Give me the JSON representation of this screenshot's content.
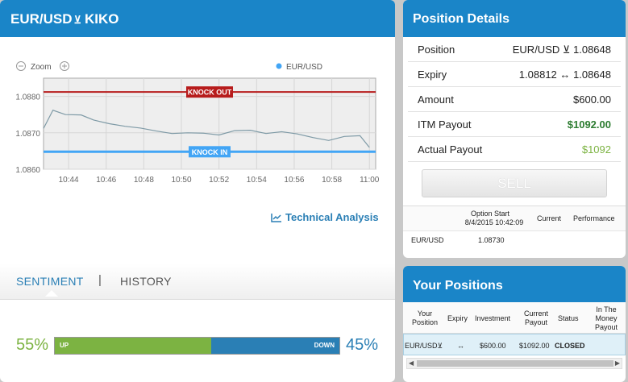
{
  "left": {
    "title": "EUR/USD",
    "title_arrow": "⊻",
    "title_suffix": "KIKO",
    "zoom_label": "Zoom",
    "legend": "EUR/USD",
    "technical_analysis": "Technical Analysis",
    "tabs": [
      "SENTIMENT",
      "|",
      "HISTORY"
    ],
    "sentiment": {
      "up_pct": "55%",
      "down_pct": "45%",
      "up_label": "UP",
      "down_label": "DOWN",
      "up_fraction": 0.55
    }
  },
  "chart_data": {
    "type": "line",
    "series": [
      {
        "name": "EUR/USD",
        "x": [
          "10:42:40",
          "10:43:10",
          "10:43:50",
          "10:44:40",
          "10:45:20",
          "10:46:10",
          "10:47:00",
          "10:47:50",
          "10:48:40",
          "10:49:30",
          "10:50:20",
          "10:51:10",
          "10:52:00",
          "10:52:50",
          "10:53:40",
          "10:54:30",
          "10:55:20",
          "10:56:10",
          "10:57:00",
          "10:57:50",
          "10:58:40",
          "10:59:30",
          "11:00:00"
        ],
        "y": [
          1.08712,
          1.08762,
          1.0875,
          1.08749,
          1.08735,
          1.08725,
          1.08718,
          1.08713,
          1.08705,
          1.08698,
          1.087,
          1.08699,
          1.08694,
          1.08706,
          1.08707,
          1.08698,
          1.08703,
          1.08697,
          1.08687,
          1.08679,
          1.0869,
          1.08692,
          1.0866
        ]
      }
    ],
    "y_ticks": [
      "1.0880",
      "1.0870",
      "1.0860"
    ],
    "x_ticks": [
      "10:44",
      "10:46",
      "10:48",
      "10:50",
      "10:52",
      "10:54",
      "10:56",
      "10:58",
      "11:00"
    ],
    "ylim": [
      1.086,
      1.0885
    ],
    "annotations": [
      {
        "label": "KNOCK OUT",
        "y": 1.08812,
        "color": "#b71c1c"
      },
      {
        "label": "KNOCK IN",
        "y": 1.08648,
        "color": "#42a5f5"
      }
    ],
    "grid": true,
    "legend_position": "top-right"
  },
  "position_details": {
    "title": "Position Details",
    "rows": [
      {
        "key": "Position",
        "value": "EUR/USD ⊻ 1.08648",
        "color": "#222"
      },
      {
        "key": "Expiry",
        "value": "1.08812 ↔ 1.08648",
        "color": "#222"
      },
      {
        "key": "Amount",
        "value": "$600.00",
        "color": "#222"
      },
      {
        "key": "ITM Payout",
        "value": "$1092.00",
        "color": "#2e7d32"
      },
      {
        "key": "Actual Payout",
        "value": "$1092",
        "color": "#7cb342"
      }
    ],
    "sell_label": "SELL",
    "option_start_label": "Option Start",
    "option_start_time": "8/4/2015 10:42:09",
    "current_label": "Current",
    "performance_label": "Performance",
    "asset": "EUR/USD",
    "start_value": "1.08730"
  },
  "your_positions": {
    "title": "Your Positions",
    "headers": [
      "Your Position",
      "Expiry",
      "Investment",
      "Current Payout",
      "Status",
      "In The Money Payout"
    ],
    "row": {
      "position": "EUR/USD⊻",
      "expiry": "↔",
      "investment": "$600.00",
      "current_payout": "$1092.00",
      "status": "CLOSED"
    }
  }
}
